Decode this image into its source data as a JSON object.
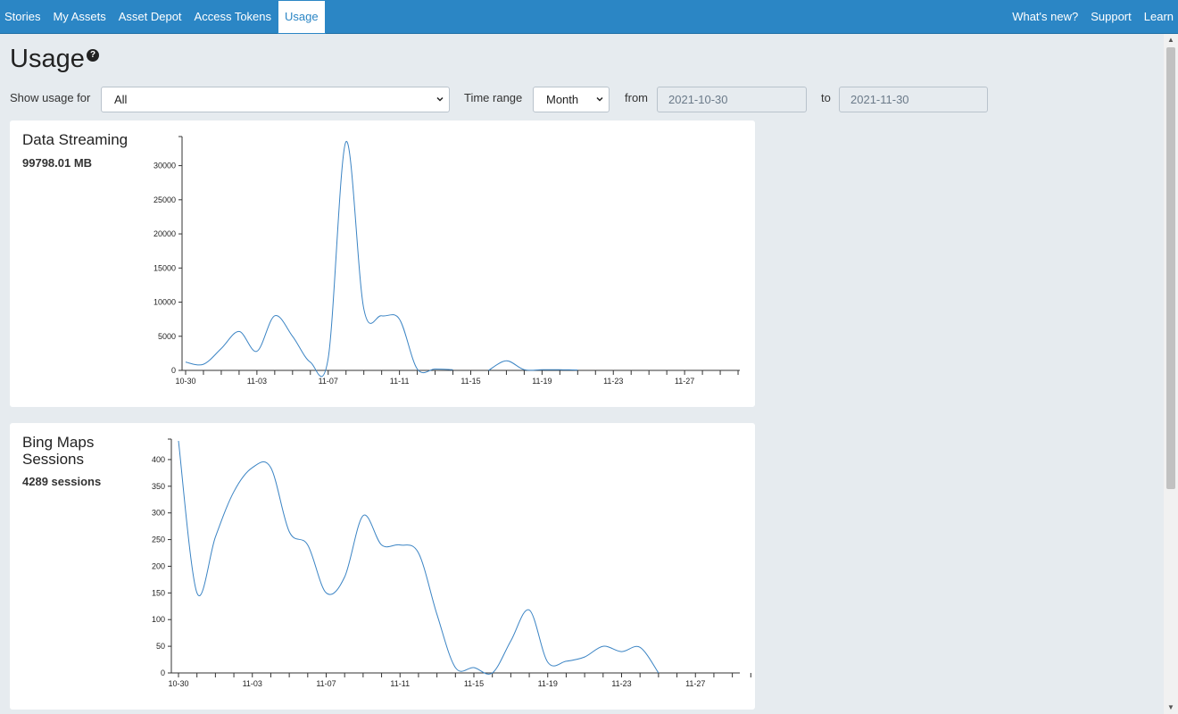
{
  "nav": {
    "left": [
      "Stories",
      "My Assets",
      "Asset Depot",
      "Access Tokens",
      "Usage"
    ],
    "active": "Usage",
    "right": [
      "What's new?",
      "Support",
      "Learn"
    ]
  },
  "page": {
    "title": "Usage",
    "help_icon": "question-circle-icon"
  },
  "filters": {
    "show_usage_label": "Show usage for",
    "show_usage_value": "All",
    "time_range_label": "Time range",
    "time_range_value": "Month",
    "from_label": "from",
    "from_value": "2021-10-30",
    "to_label": "to",
    "to_value": "2021-11-30"
  },
  "cards": {
    "streaming": {
      "title": "Data Streaming",
      "metric": "99798.01 MB"
    },
    "sessions": {
      "title": "Bing Maps Sessions",
      "metric": "4289 sessions"
    }
  },
  "colors": {
    "nav": "#2b86c5",
    "line": "#3b84c4",
    "background": "#e6ebef"
  },
  "chart_data": [
    {
      "type": "line",
      "title": "Data Streaming",
      "x": [
        "10-30",
        "10-31",
        "11-01",
        "11-02",
        "11-03",
        "11-04",
        "11-05",
        "11-06",
        "11-07",
        "11-08",
        "11-09",
        "11-10",
        "11-11",
        "11-12",
        "11-13",
        "11-14",
        "11-15",
        "11-16",
        "11-17",
        "11-18",
        "11-19",
        "11-20",
        "11-21",
        "11-22",
        "11-23",
        "11-24",
        "11-25",
        "11-26",
        "11-27",
        "11-28",
        "11-29",
        "11-30",
        "12-01"
      ],
      "x_ticks": [
        "10-30",
        "11-03",
        "11-07",
        "11-11",
        "11-15",
        "11-19",
        "11-23",
        "11-27"
      ],
      "values": [
        1200,
        900,
        3200,
        5700,
        2800,
        8000,
        5000,
        1200,
        1800,
        33500,
        9000,
        8000,
        7500,
        200,
        200,
        100,
        null,
        0,
        1400,
        100,
        100,
        100,
        50,
        null,
        null,
        null,
        null,
        null,
        null,
        null,
        null,
        null,
        null
      ],
      "yticks": [
        0,
        5000,
        10000,
        15000,
        20000,
        25000,
        30000
      ],
      "ylim": [
        0,
        34000
      ]
    },
    {
      "type": "line",
      "title": "Bing Maps Sessions",
      "x": [
        "10-30",
        "10-31",
        "11-01",
        "11-02",
        "11-03",
        "11-04",
        "11-05",
        "11-06",
        "11-07",
        "11-08",
        "11-09",
        "11-10",
        "11-11",
        "11-12",
        "11-13",
        "11-14",
        "11-15",
        "11-16",
        "11-17",
        "11-18",
        "11-19",
        "11-20",
        "11-21",
        "11-22",
        "11-23",
        "11-24",
        "11-25",
        "11-26",
        "11-27",
        "11-28",
        "11-29",
        "11-30",
        "12-01"
      ],
      "x_ticks": [
        "10-30",
        "11-03",
        "11-07",
        "11-11",
        "11-15",
        "11-19",
        "11-23",
        "11-27"
      ],
      "values": [
        435,
        150,
        255,
        340,
        385,
        385,
        265,
        240,
        150,
        180,
        295,
        240,
        240,
        225,
        110,
        10,
        10,
        0,
        60,
        118,
        20,
        22,
        30,
        50,
        40,
        48,
        0,
        null,
        null,
        null,
        null,
        null,
        null
      ],
      "yticks": [
        0,
        50,
        100,
        150,
        200,
        250,
        300,
        350,
        400
      ],
      "ylim": [
        0,
        435
      ]
    }
  ]
}
